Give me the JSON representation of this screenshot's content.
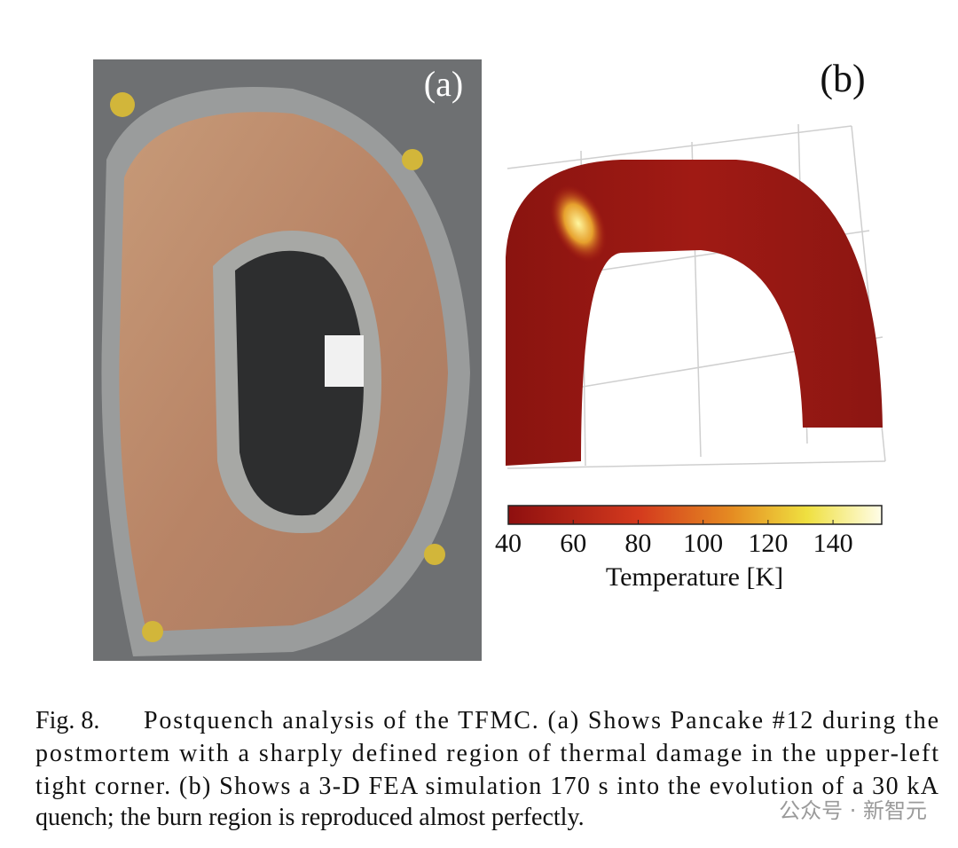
{
  "figure": {
    "panel_a": {
      "label": "(a)"
    },
    "panel_b": {
      "label": "(b)"
    },
    "colorbar": {
      "label": "Temperature [K]",
      "lim": [
        40,
        155
      ],
      "ticks": [
        40,
        60,
        80,
        100,
        120,
        140
      ]
    },
    "caption": {
      "number": "Fig. 8.",
      "lines": [
        "Postquench analysis of the TFMC. (a) Shows Pancake #12 during the",
        "postmortem with a sharply defined region of thermal damage in the upper-left",
        "tight corner. (b) Shows a 3-D FEA simulation 170 s into the evolution of a 30 kA",
        "quench; the burn region is reproduced almost perfectly."
      ]
    },
    "watermark": "公众号 · 新智元"
  }
}
